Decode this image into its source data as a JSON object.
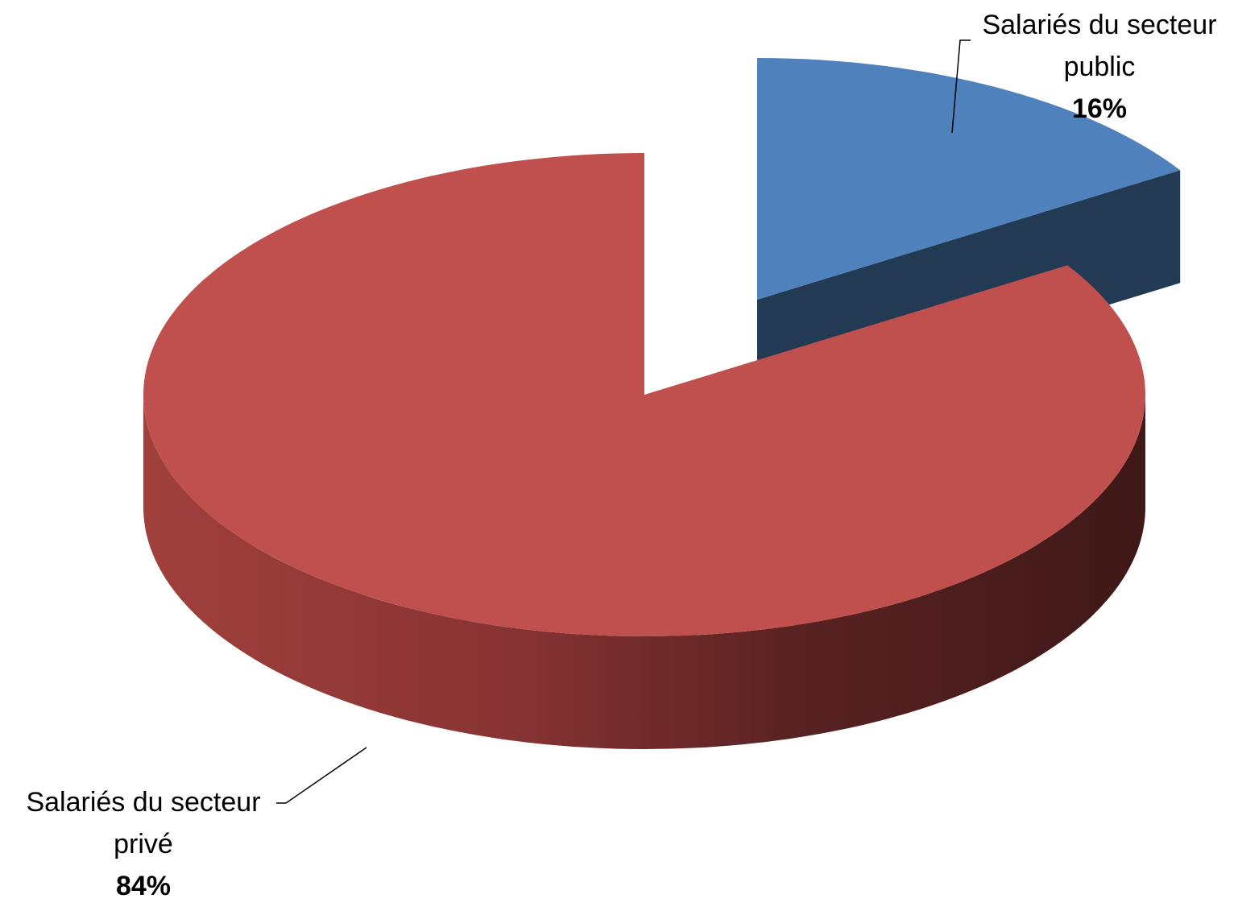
{
  "chart_data": {
    "type": "pie",
    "categories": [
      "Salariés du secteur public",
      "Salariés du secteur privé"
    ],
    "values": [
      16,
      84
    ],
    "value_labels": [
      "16%",
      "84%"
    ],
    "colors": [
      "#4f81bd",
      "#c0504d"
    ]
  }
}
